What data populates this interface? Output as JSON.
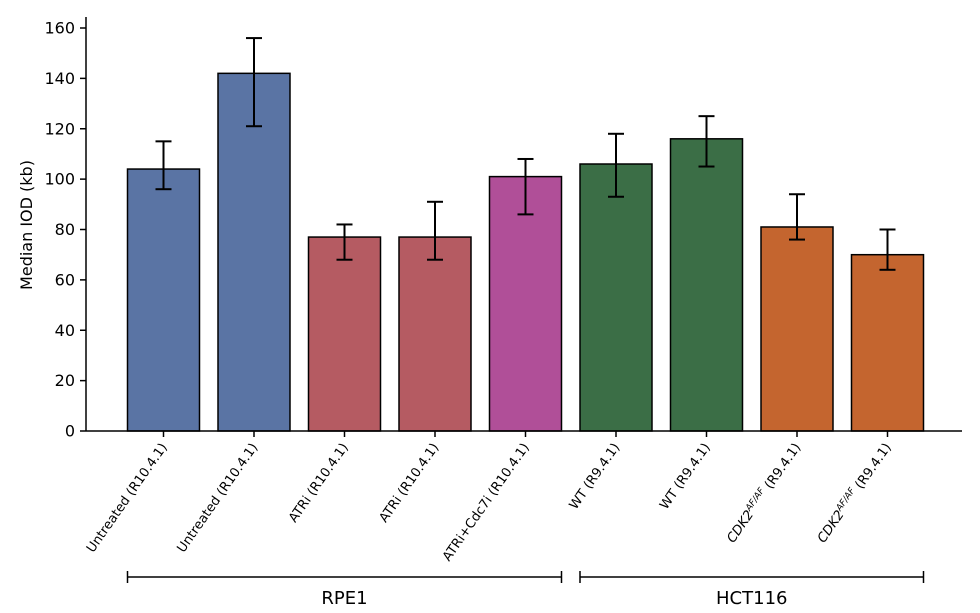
{
  "chart_data": {
    "type": "bar",
    "ylabel": "Median IOD (kb)",
    "xlabel": "",
    "ylim": [
      0,
      165
    ],
    "yticks": [
      0,
      20,
      40,
      60,
      80,
      100,
      120,
      140,
      160
    ],
    "grid": false,
    "categories": [
      {
        "text": "Untreated (R10.4.1)"
      },
      {
        "text": "Untreated (R10.4.1)"
      },
      {
        "text": "ATRi (R10.4.1)"
      },
      {
        "text": "ATRi (R10.4.1)"
      },
      {
        "text": "ATRi+Cdc7i (R10.4.1)"
      },
      {
        "text": "WT (R9.4.1)"
      },
      {
        "text": "WT (R9.4.1)"
      },
      {
        "base": "CDK2",
        "sup": "AF/AF",
        "rest": " (R9.4.1)"
      },
      {
        "base": "CDK2",
        "sup": "AF/AF",
        "rest": " (R9.4.1)"
      }
    ],
    "values": [
      104,
      142,
      77,
      77,
      101,
      106,
      116,
      81,
      70
    ],
    "error_low": [
      96,
      121,
      68,
      68,
      86,
      93,
      105,
      76,
      64
    ],
    "error_high": [
      115,
      156,
      82,
      91,
      108,
      118,
      125,
      94,
      80
    ],
    "colors": [
      "#5a74a4",
      "#5a74a4",
      "#b55b62",
      "#b55b62",
      "#b04f98",
      "#3b6e46",
      "#3b6e46",
      "#c4652f",
      "#c4652f"
    ],
    "groups": [
      {
        "label": "RPE1",
        "start": 0,
        "end": 4
      },
      {
        "label": "HCT116",
        "start": 5,
        "end": 8
      }
    ]
  }
}
